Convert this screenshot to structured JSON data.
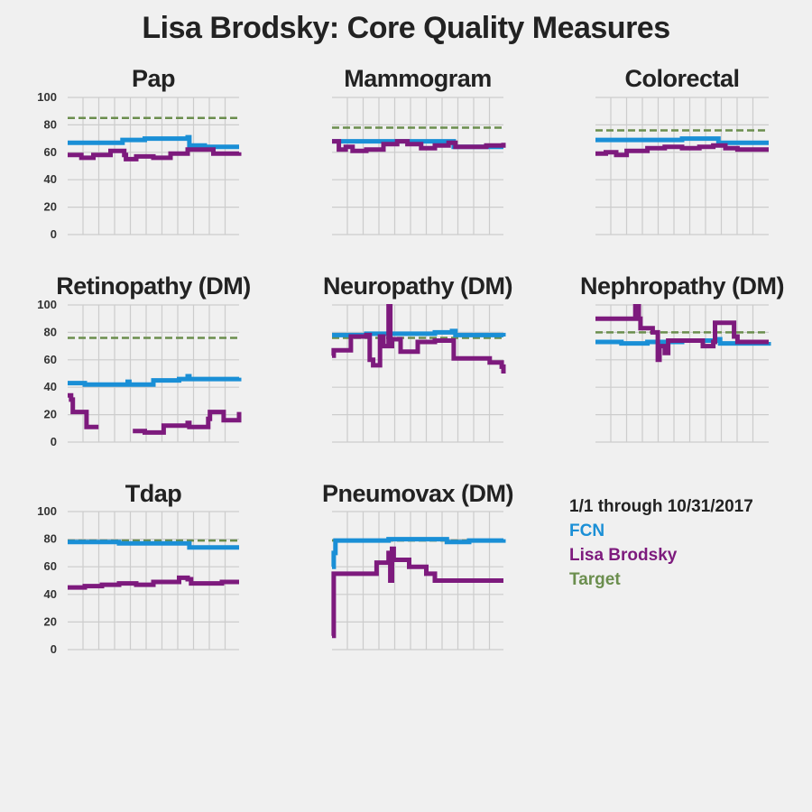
{
  "title": "Lisa Brodsky: Core Quality Measures",
  "legend": {
    "period": "1/1 through 10/31/2017",
    "items": [
      {
        "label": "FCN",
        "color": "#1a8fd6"
      },
      {
        "label": "Lisa Brodsky",
        "color": "#7d1a7d"
      },
      {
        "label": "Target",
        "color": "#6b8e4e"
      }
    ]
  },
  "colors": {
    "fcn": "#1a8fd6",
    "provider": "#7d1a7d",
    "target": "#6b8e4e",
    "grid": "#cccccc"
  },
  "chart_data": [
    {
      "type": "line",
      "title": "Pap",
      "ylim": [
        0,
        100
      ],
      "yticks": [
        0,
        20,
        40,
        60,
        80,
        100
      ],
      "show_yticks": true,
      "xlim": [
        0,
        1
      ],
      "grid": true,
      "target": 85,
      "series": [
        {
          "name": "FCN",
          "x": [
            0,
            0.15,
            0.32,
            0.45,
            0.7,
            0.71,
            0.8,
            1.0
          ],
          "y": [
            67,
            67,
            69,
            70,
            71,
            65,
            64,
            64
          ]
        },
        {
          "name": "Lisa Brodsky",
          "x": [
            0,
            0.08,
            0.15,
            0.25,
            0.33,
            0.34,
            0.4,
            0.5,
            0.6,
            0.7,
            0.8,
            0.85,
            0.9,
            1.0
          ],
          "y": [
            58,
            56,
            58,
            61,
            58,
            55,
            57,
            56,
            59,
            62,
            62,
            59,
            59,
            60
          ]
        }
      ]
    },
    {
      "type": "line",
      "title": "Mammogram",
      "ylim": [
        0,
        100
      ],
      "yticks": [
        0,
        20,
        40,
        60,
        80,
        100
      ],
      "show_yticks": false,
      "xlim": [
        0,
        1
      ],
      "grid": true,
      "target": 78,
      "series": [
        {
          "name": "FCN",
          "x": [
            0,
            0.3,
            0.5,
            0.7,
            0.71,
            1.0
          ],
          "y": [
            68,
            68,
            68,
            68,
            64,
            64
          ]
        },
        {
          "name": "Lisa Brodsky",
          "x": [
            0,
            0.04,
            0.08,
            0.12,
            0.2,
            0.3,
            0.38,
            0.44,
            0.52,
            0.6,
            0.68,
            0.72,
            0.8,
            0.9,
            1.0
          ],
          "y": [
            68,
            62,
            64,
            61,
            62,
            66,
            68,
            66,
            63,
            65,
            67,
            64,
            64,
            65,
            67
          ]
        }
      ]
    },
    {
      "type": "line",
      "title": "Colorectal",
      "ylim": [
        0,
        100
      ],
      "yticks": [
        0,
        20,
        40,
        60,
        80,
        100
      ],
      "show_yticks": false,
      "xlim": [
        0,
        1
      ],
      "grid": true,
      "target": 76,
      "series": [
        {
          "name": "FCN",
          "x": [
            0,
            0.3,
            0.5,
            0.7,
            0.71,
            1.0
          ],
          "y": [
            69,
            69,
            70,
            70,
            67,
            67
          ]
        },
        {
          "name": "Lisa Brodsky",
          "x": [
            0,
            0.06,
            0.12,
            0.18,
            0.3,
            0.4,
            0.5,
            0.6,
            0.68,
            0.75,
            0.82,
            0.9,
            1.0
          ],
          "y": [
            59,
            60,
            58,
            61,
            63,
            64,
            63,
            64,
            65,
            63,
            62,
            62,
            62
          ]
        }
      ]
    },
    {
      "type": "line",
      "title": "Retinopathy (DM)",
      "ylim": [
        0,
        100
      ],
      "yticks": [
        0,
        20,
        40,
        60,
        80,
        100
      ],
      "show_yticks": true,
      "xlim": [
        0,
        1
      ],
      "grid": true,
      "target": 76,
      "series": [
        {
          "name": "FCN",
          "x": [
            0,
            0.1,
            0.2,
            0.35,
            0.36,
            0.5,
            0.65,
            0.7,
            0.71,
            0.8,
            1.0
          ],
          "y": [
            43,
            42,
            42,
            44,
            42,
            45,
            46,
            48,
            46,
            46,
            47
          ]
        },
        {
          "name": "Lisa Brodsky",
          "x": [
            0,
            0.02,
            0.03,
            0.1,
            0.11,
            0.18,
            null,
            0.38,
            0.45,
            0.46,
            0.55,
            0.56,
            0.7,
            0.71,
            0.82,
            0.83,
            0.9,
            0.91,
            1.0
          ],
          "y": [
            34,
            31,
            22,
            22,
            11,
            11,
            null,
            8,
            7,
            7,
            7,
            12,
            14,
            11,
            17,
            22,
            22,
            16,
            22
          ]
        }
      ]
    },
    {
      "type": "line",
      "title": "Neuropathy (DM)",
      "ylim": [
        0,
        100
      ],
      "yticks": [
        0,
        20,
        40,
        60,
        80,
        100
      ],
      "show_yticks": false,
      "xlim": [
        0,
        1
      ],
      "grid": true,
      "target": 76,
      "series": [
        {
          "name": "FCN",
          "x": [
            0,
            0.2,
            0.4,
            0.6,
            0.7,
            0.72,
            1.0
          ],
          "y": [
            78,
            79,
            79,
            80,
            81,
            78,
            77
          ]
        },
        {
          "name": "Lisa Brodsky",
          "x": [
            0,
            0.01,
            0.1,
            0.11,
            0.2,
            0.22,
            0.24,
            0.28,
            0.3,
            0.33,
            0.34,
            0.35,
            0.4,
            0.5,
            0.6,
            0.7,
            0.71,
            0.85,
            0.9,
            0.92,
            0.99,
            1.0
          ],
          "y": [
            63,
            67,
            67,
            77,
            78,
            60,
            56,
            77,
            70,
            99,
            70,
            75,
            66,
            73,
            74,
            74,
            61,
            61,
            61,
            58,
            55,
            50
          ]
        }
      ]
    },
    {
      "type": "line",
      "title": "Nephropathy (DM)",
      "ylim": [
        0,
        100
      ],
      "yticks": [
        0,
        20,
        40,
        60,
        80,
        100
      ],
      "show_yticks": false,
      "xlim": [
        0,
        1
      ],
      "grid": true,
      "target": 80,
      "series": [
        {
          "name": "FCN",
          "x": [
            0,
            0.15,
            0.3,
            0.5,
            0.7,
            0.72,
            1.0
          ],
          "y": [
            73,
            72,
            73,
            74,
            75,
            72,
            73
          ]
        },
        {
          "name": "Lisa Brodsky",
          "x": [
            0,
            0.22,
            0.23,
            0.25,
            0.26,
            0.33,
            0.36,
            0.37,
            0.4,
            0.42,
            0.5,
            0.6,
            0.62,
            0.68,
            0.69,
            0.78,
            0.8,
            0.82,
            1.0
          ],
          "y": [
            90,
            90,
            99,
            90,
            83,
            80,
            60,
            70,
            65,
            74,
            74,
            74,
            70,
            73,
            87,
            87,
            77,
            73,
            73
          ]
        }
      ]
    },
    {
      "type": "line",
      "title": "Tdap",
      "ylim": [
        0,
        100
      ],
      "yticks": [
        0,
        20,
        40,
        60,
        80,
        100
      ],
      "show_yticks": true,
      "xlim": [
        0,
        1
      ],
      "grid": true,
      "target": 79,
      "series": [
        {
          "name": "FCN",
          "x": [
            0,
            0.3,
            0.5,
            0.7,
            0.71,
            1.0
          ],
          "y": [
            78,
            77,
            77,
            77,
            74,
            74
          ]
        },
        {
          "name": "Lisa Brodsky",
          "x": [
            0,
            0.1,
            0.2,
            0.3,
            0.4,
            0.5,
            0.6,
            0.65,
            0.7,
            0.72,
            0.8,
            0.9,
            1.0
          ],
          "y": [
            45,
            46,
            47,
            48,
            47,
            49,
            49,
            52,
            51,
            48,
            48,
            49,
            49
          ]
        }
      ]
    },
    {
      "type": "line",
      "title": "Pneumovax (DM)",
      "ylim": [
        0,
        100
      ],
      "yticks": [
        0,
        20,
        40,
        60,
        80,
        100
      ],
      "show_yticks": false,
      "xlim": [
        0,
        1
      ],
      "grid": true,
      "target": 79,
      "series": [
        {
          "name": "FCN",
          "x": [
            0,
            0.01,
            0.02,
            0.3,
            0.33,
            0.5,
            0.65,
            0.67,
            0.8,
            1.0
          ],
          "y": [
            60,
            70,
            79,
            79,
            80,
            80,
            80,
            78,
            79,
            80
          ]
        },
        {
          "name": "Lisa Brodsky",
          "x": [
            0,
            0.01,
            0.02,
            0.25,
            0.26,
            0.33,
            0.34,
            0.35,
            0.36,
            0.45,
            0.55,
            0.6,
            0.68,
            1.0
          ],
          "y": [
            10,
            55,
            55,
            55,
            63,
            70,
            50,
            73,
            65,
            60,
            55,
            50,
            50,
            50
          ]
        }
      ]
    }
  ]
}
